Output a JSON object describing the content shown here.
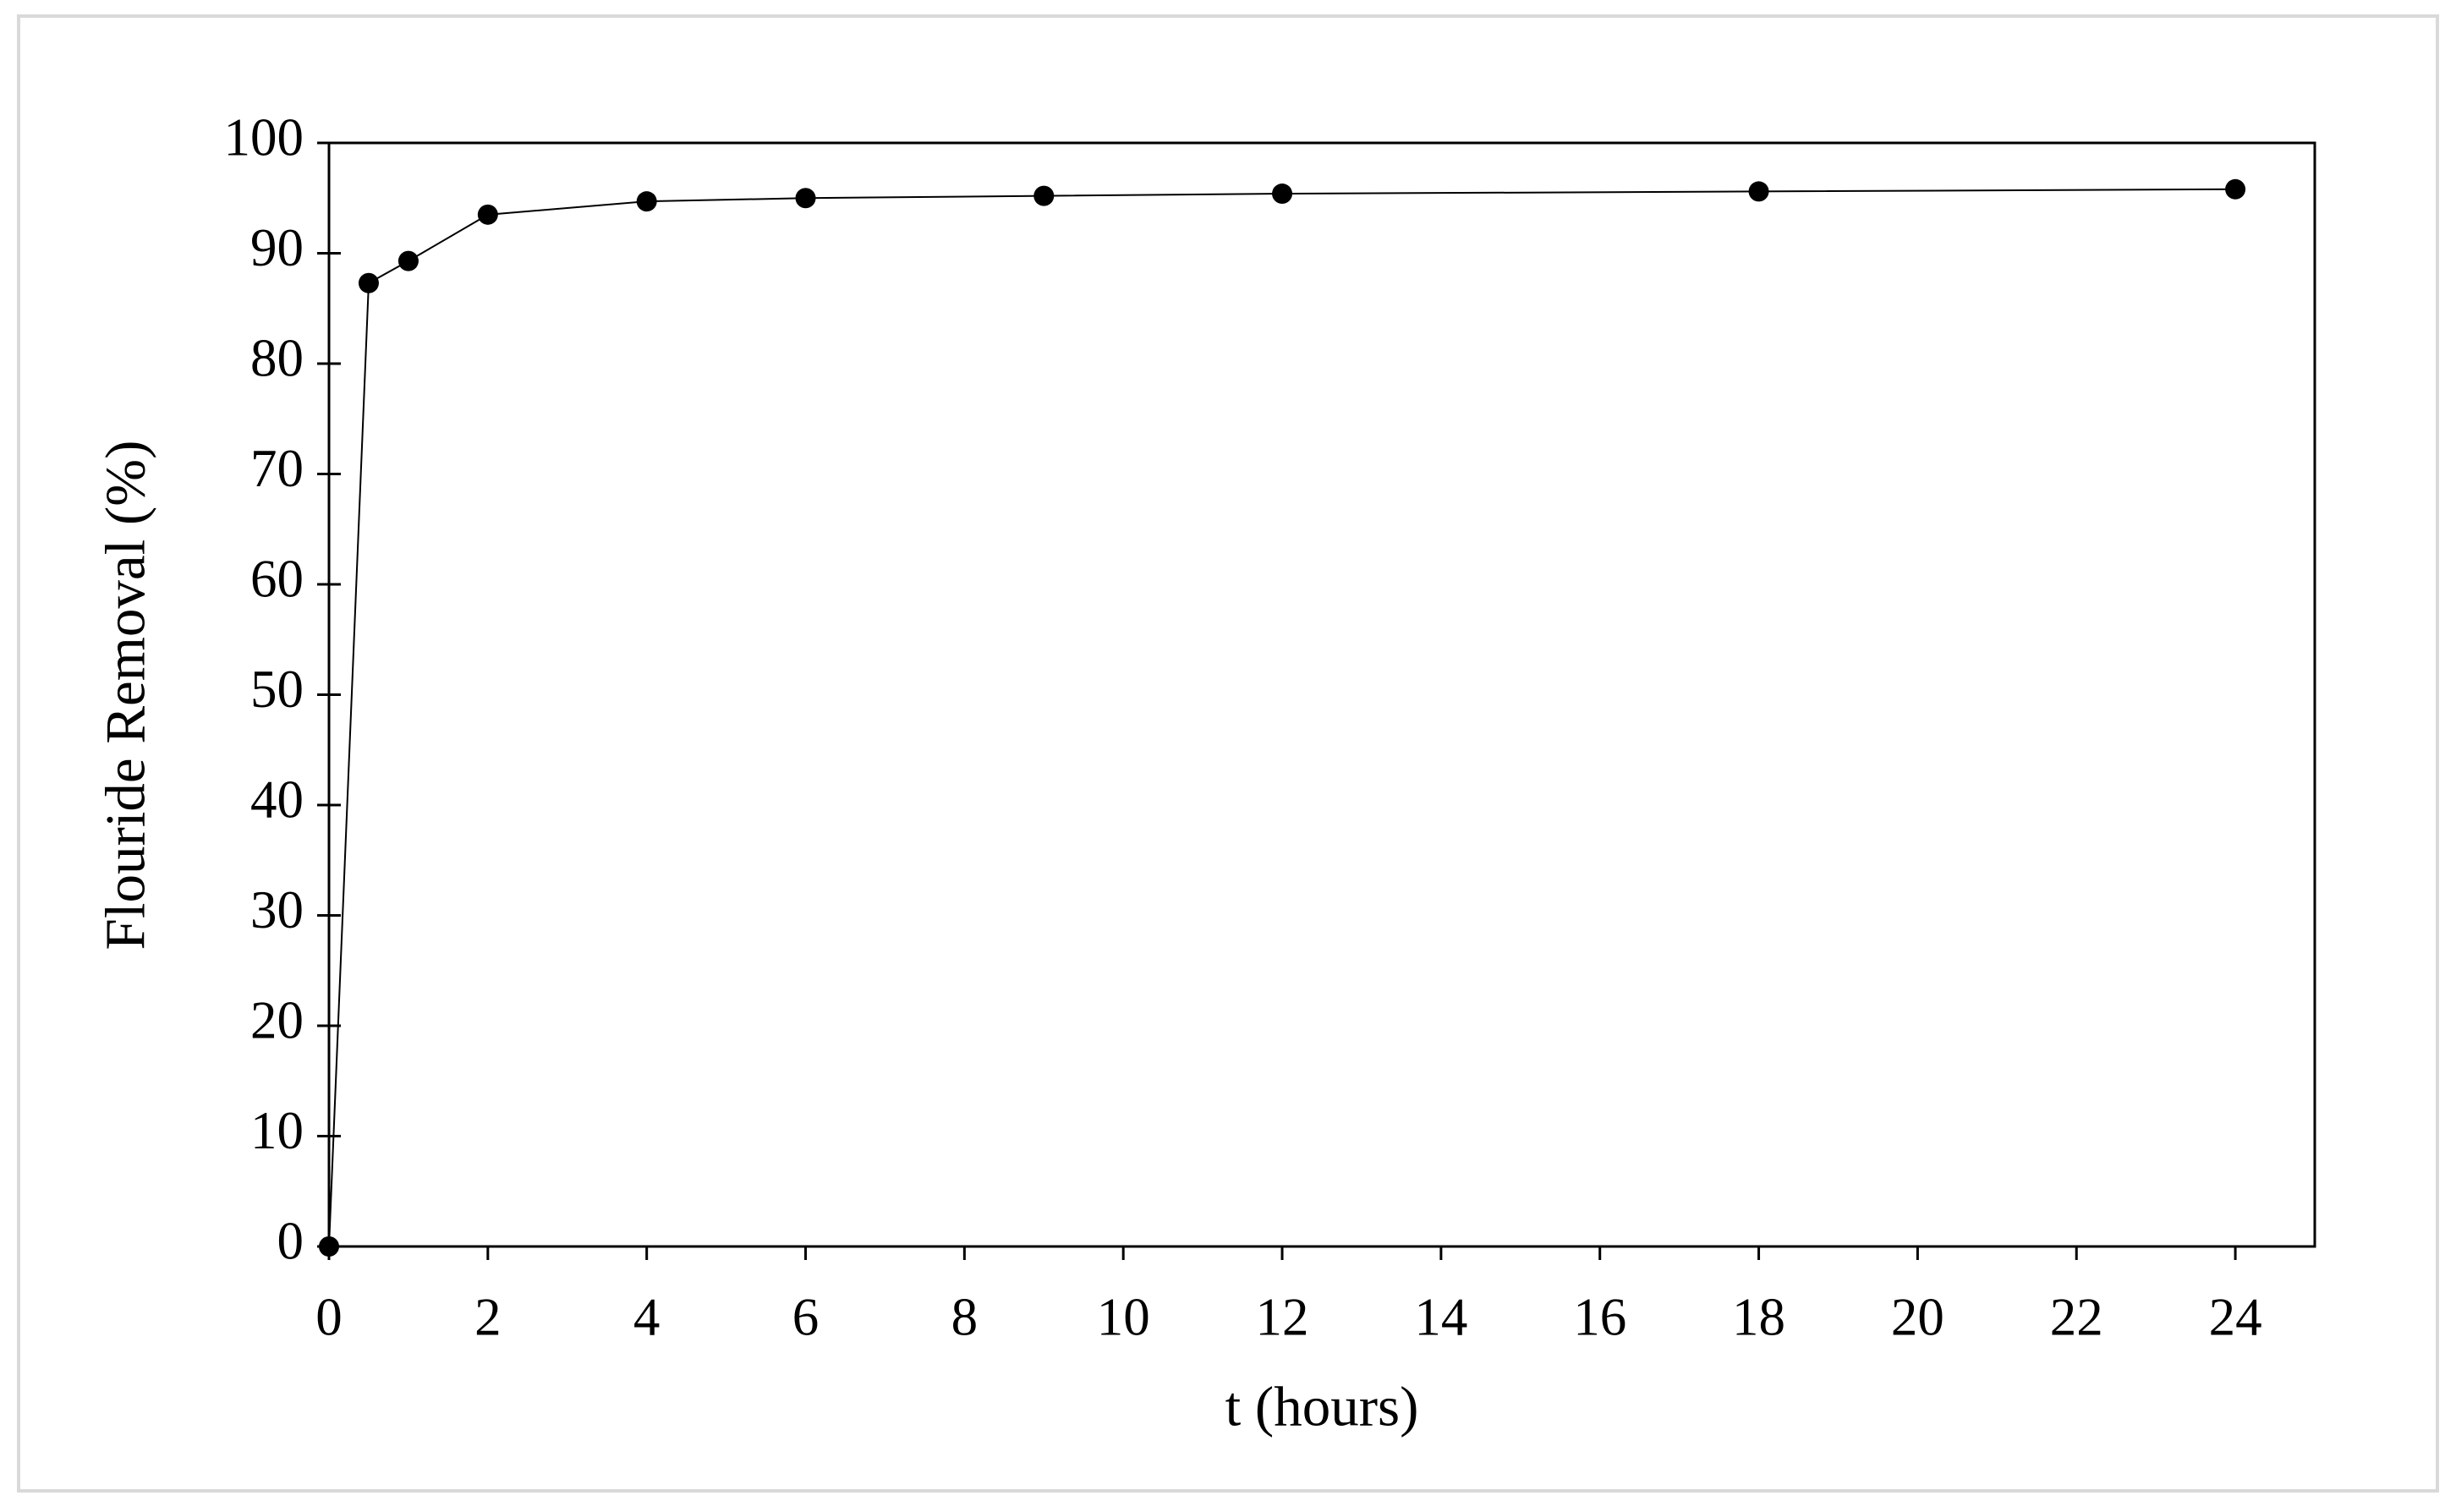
{
  "chart_data": {
    "type": "line",
    "x_label": "t (hours)",
    "y_label": "Flouride Removal (%)",
    "x": [
      0,
      0.5,
      1,
      2,
      4,
      6,
      9,
      12,
      18,
      24
    ],
    "series": [
      {
        "color": "#000000",
        "values": [
          0,
          87.3,
          89.3,
          93.5,
          94.7,
          95.0,
          95.2,
          95.4,
          95.6,
          95.8
        ]
      }
    ],
    "xlim": [
      0,
      25
    ],
    "xticks": [
      0,
      2,
      4,
      6,
      8,
      10,
      12,
      14,
      16,
      18,
      20,
      22,
      24
    ],
    "ylim": [
      0,
      100
    ],
    "yticks": [
      0,
      10,
      20,
      30,
      40,
      50,
      60,
      70,
      80,
      90,
      100
    ],
    "grid": false,
    "markers": true
  }
}
